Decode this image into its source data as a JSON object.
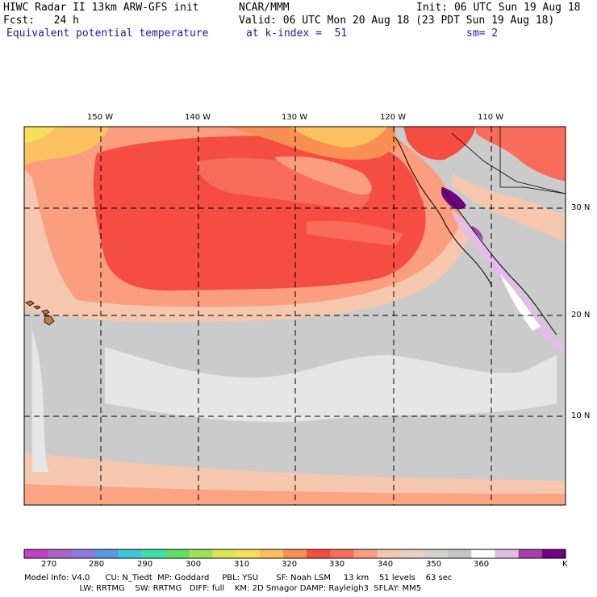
{
  "header": {
    "line1_left": "HIWC Radar II 13km ARW-GFS init",
    "line1_mid": "NCAR/MMM",
    "line1_right": "Init: 06 UTC Sun 19 Aug 18",
    "line2_left": "Fcst:   24 h",
    "line2_right": "Valid: 06 UTC Mon 20 Aug 18 (23 PDT Sun 19 Aug 18)",
    "line3_left": "Equivalent potential temperature",
    "line3_mid": "at k-index =  51",
    "line3_right": "sm= 2"
  },
  "map": {
    "lon_labels": [
      "150 W",
      "140 W",
      "130 W",
      "120 W",
      "110 W"
    ],
    "lat_labels": [
      "30 N",
      "20 N",
      "10 N"
    ]
  },
  "colorbar": {
    "unit": "K",
    "ticks": [
      "270",
      "280",
      "290",
      "300",
      "310",
      "320",
      "330",
      "340",
      "350",
      "360"
    ],
    "colors": [
      "#c33fc3",
      "#a864c8",
      "#8f78e0",
      "#5a98e6",
      "#3fc6d8",
      "#3fe0a8",
      "#5ee063",
      "#9ee35a",
      "#d8e84e",
      "#f5df58",
      "#fbc060",
      "#f98f52",
      "#f54d42",
      "#f96b5a",
      "#fb9d7f",
      "#f4c7ae",
      "#e7d0c4",
      "#d6d1d1",
      "#c6c6c6",
      "#ffffff",
      "#e3bde8",
      "#a43fa8",
      "#720086"
    ]
  },
  "footer": {
    "line1": "Model Info: V4.0      CU: N_Tiedt  MP: Goddard     PBL: YSU       SF: Noah LSM     13 km    51 levels    63 sec",
    "line2": "                               LW: RRTMG    SW: RRTMG   DIFF: full    KM: 2D Smagor DAMP: Rayleigh3  SFLAY: MM5"
  }
}
